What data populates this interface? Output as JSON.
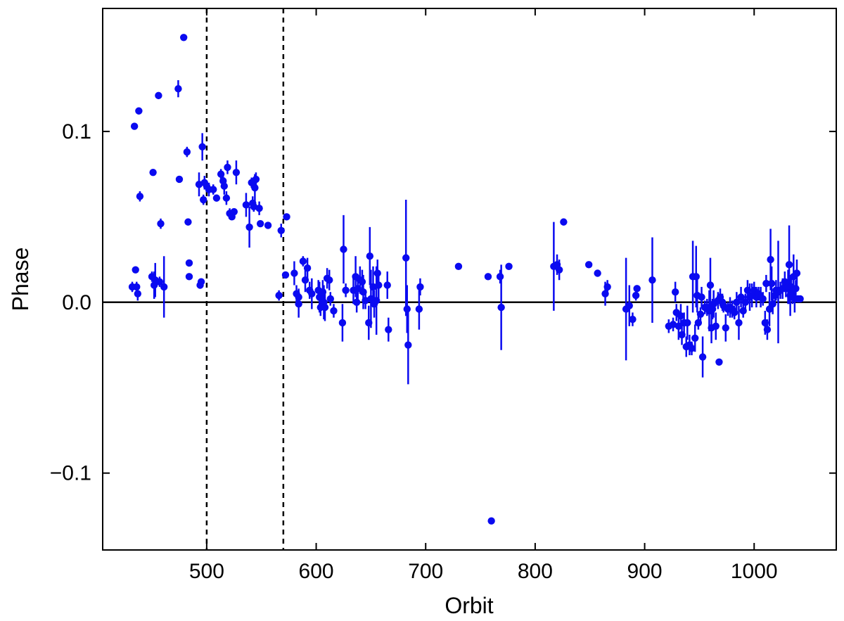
{
  "chart_data": {
    "type": "scatter",
    "title": "",
    "xlabel": "Orbit",
    "ylabel": "Phase",
    "xlim": [
      405,
      1075
    ],
    "ylim": [
      -0.145,
      0.172
    ],
    "xticks": [
      500,
      600,
      700,
      800,
      900,
      1000
    ],
    "yticks": [
      -0.1,
      0.0,
      0.1
    ],
    "ytick_labels": [
      "−0.1",
      "0.0",
      "0.1"
    ],
    "grid": false,
    "legend": "none",
    "point_color": "#0a0af0",
    "reference_lines": {
      "horizontal": [
        0.0
      ],
      "vertical_dashed": [
        500,
        570
      ]
    },
    "points": [
      [
        432,
        0.009,
        0.003
      ],
      [
        434,
        0.103,
        0.001
      ],
      [
        435,
        0.019,
        0.002
      ],
      [
        436,
        0.009,
        0.003
      ],
      [
        437,
        0.005,
        0.004
      ],
      [
        438,
        0.112,
        0.001
      ],
      [
        439,
        0.062,
        0.003
      ],
      [
        450,
        0.015,
        0.003
      ],
      [
        451,
        0.076,
        0.001
      ],
      [
        452,
        0.01,
        0.008
      ],
      [
        453,
        0.013,
        0.01
      ],
      [
        456,
        0.121,
        0.002
      ],
      [
        457,
        0.012,
        0.003
      ],
      [
        458,
        0.046,
        0.003
      ],
      [
        461,
        0.009,
        0.018
      ],
      [
        474,
        0.125,
        0.005
      ],
      [
        475,
        0.072,
        0.001
      ],
      [
        479,
        0.155,
        0.001
      ],
      [
        482,
        0.088,
        0.003
      ],
      [
        483,
        0.047,
        0.001
      ],
      [
        484,
        0.023,
        0.001
      ],
      [
        484,
        0.015,
        0.001
      ],
      [
        493,
        0.069,
        0.007
      ],
      [
        494,
        0.01,
        0.002
      ],
      [
        495,
        0.012,
        0.002
      ],
      [
        496,
        0.091,
        0.008
      ],
      [
        497,
        0.06,
        0.003
      ],
      [
        498,
        0.07,
        0.004
      ],
      [
        500,
        0.068,
        0.003
      ],
      [
        502,
        0.066,
        0.004
      ],
      [
        506,
        0.066,
        0.003
      ],
      [
        509,
        0.061,
        0.002
      ],
      [
        513,
        0.075,
        0.003
      ],
      [
        515,
        0.071,
        0.004
      ],
      [
        516,
        0.068,
        0.005
      ],
      [
        518,
        0.061,
        0.004
      ],
      [
        519,
        0.079,
        0.004
      ],
      [
        521,
        0.052,
        0.003
      ],
      [
        523,
        0.05,
        0.001
      ],
      [
        525,
        0.053,
        0.002
      ],
      [
        527,
        0.076,
        0.007
      ],
      [
        536,
        0.057,
        0.007
      ],
      [
        539,
        0.044,
        0.012
      ],
      [
        541,
        0.07,
        0.003
      ],
      [
        542,
        0.058,
        0.004
      ],
      [
        543,
        0.056,
        0.003
      ],
      [
        544,
        0.067,
        0.008
      ],
      [
        545,
        0.072,
        0.004
      ],
      [
        548,
        0.055,
        0.004
      ],
      [
        549,
        0.046,
        0.001
      ],
      [
        556,
        0.045,
        0.001
      ],
      [
        566,
        0.004,
        0.003
      ],
      [
        568,
        0.042,
        0.004
      ],
      [
        572,
        0.016,
        0.001
      ],
      [
        573,
        0.05,
        0.002
      ],
      [
        580,
        0.017,
        0.007
      ],
      [
        582,
        0.005,
        0.005
      ],
      [
        584,
        -0.001,
        0.008
      ],
      [
        584,
        0.003,
        0.005
      ],
      [
        588,
        0.024,
        0.003
      ],
      [
        590,
        0.013,
        0.007
      ],
      [
        592,
        0.02,
        0.006
      ],
      [
        594,
        0.007,
        0.005
      ],
      [
        596,
        0.005,
        0.009
      ],
      [
        602,
        0.007,
        0.006
      ],
      [
        603,
        0.003,
        0.009
      ],
      [
        604,
        -0.003,
        0.005
      ],
      [
        606,
        0.006,
        0.007
      ],
      [
        607,
        0.0,
        0.01
      ],
      [
        608,
        -0.003,
        0.008
      ],
      [
        610,
        0.014,
        0.006
      ],
      [
        612,
        0.013,
        0.006
      ],
      [
        613,
        0.002,
        0.004
      ],
      [
        616,
        -0.005,
        0.004
      ],
      [
        624,
        -0.012,
        0.011
      ],
      [
        625,
        0.031,
        0.02
      ],
      [
        627,
        0.007,
        0.004
      ],
      [
        634,
        0.007,
        0.008
      ],
      [
        636,
        0.015,
        0.012
      ],
      [
        637,
        0.0,
        0.006
      ],
      [
        638,
        0.008,
        0.007
      ],
      [
        640,
        0.013,
        0.008
      ],
      [
        642,
        0.012,
        0.007
      ],
      [
        643,
        0.006,
        0.01
      ],
      [
        645,
        0.001,
        0.005
      ],
      [
        648,
        -0.012,
        0.01
      ],
      [
        649,
        0.027,
        0.017
      ],
      [
        650,
        0.002,
        0.017
      ],
      [
        652,
        0.009,
        0.012
      ],
      [
        653,
        -0.001,
        0.008
      ],
      [
        655,
        0.001,
        0.02
      ],
      [
        656,
        0.017,
        0.008
      ],
      [
        657,
        0.01,
        0.008
      ],
      [
        665,
        0.01,
        0.008
      ],
      [
        666,
        -0.016,
        0.007
      ],
      [
        682,
        0.026,
        0.034
      ],
      [
        683,
        -0.004,
        0.014
      ],
      [
        684,
        -0.025,
        0.023
      ],
      [
        694,
        -0.004,
        0.012
      ],
      [
        695,
        0.009,
        0.005
      ],
      [
        730,
        0.021,
        0.001
      ],
      [
        757,
        0.015,
        0.001
      ],
      [
        760,
        -0.128,
        0.001
      ],
      [
        768,
        0.015,
        0.004
      ],
      [
        769,
        -0.003,
        0.025
      ],
      [
        776,
        0.021,
        0.002
      ],
      [
        817,
        0.021,
        0.026
      ],
      [
        820,
        0.022,
        0.006
      ],
      [
        822,
        0.019,
        0.006
      ],
      [
        826,
        0.047,
        0.001
      ],
      [
        849,
        0.022,
        0.001
      ],
      [
        857,
        0.017,
        0.001
      ],
      [
        864,
        0.005,
        0.007
      ],
      [
        866,
        0.009,
        0.004
      ],
      [
        883,
        -0.004,
        0.03
      ],
      [
        886,
        -0.002,
        0.012
      ],
      [
        889,
        -0.01,
        0.004
      ],
      [
        892,
        0.004,
        0.003
      ],
      [
        893,
        0.008,
        0.002
      ],
      [
        907,
        0.013,
        0.025
      ],
      [
        922,
        -0.014,
        0.004
      ],
      [
        926,
        -0.013,
        0.004
      ],
      [
        928,
        0.006,
        0.006
      ],
      [
        929,
        -0.006,
        0.005
      ],
      [
        931,
        -0.014,
        0.008
      ],
      [
        933,
        -0.008,
        0.007
      ],
      [
        934,
        -0.019,
        0.006
      ],
      [
        936,
        -0.012,
        0.006
      ],
      [
        938,
        -0.026,
        0.006
      ],
      [
        939,
        -0.012,
        0.01
      ],
      [
        941,
        -0.025,
        0.006
      ],
      [
        943,
        -0.027,
        0.004
      ],
      [
        944,
        0.015,
        0.021
      ],
      [
        946,
        -0.021,
        0.008
      ],
      [
        947,
        0.015,
        0.018
      ],
      [
        948,
        0.004,
        0.01
      ],
      [
        949,
        -0.012,
        0.004
      ],
      [
        951,
        -0.007,
        0.004
      ],
      [
        952,
        0.003,
        0.006
      ],
      [
        953,
        -0.032,
        0.012
      ],
      [
        955,
        -0.003,
        0.004
      ],
      [
        957,
        -0.003,
        0.005
      ],
      [
        959,
        -0.005,
        0.012
      ],
      [
        960,
        0.01,
        0.016
      ],
      [
        961,
        -0.015,
        0.009
      ],
      [
        962,
        -0.004,
        0.006
      ],
      [
        963,
        -0.001,
        0.008
      ],
      [
        965,
        -0.014,
        0.008
      ],
      [
        967,
        0.001,
        0.005
      ],
      [
        968,
        -0.035,
        0.002
      ],
      [
        969,
        0.003,
        0.005
      ],
      [
        971,
        0.0,
        0.005
      ],
      [
        972,
        -0.002,
        0.004
      ],
      [
        974,
        -0.015,
        0.008
      ],
      [
        976,
        -0.004,
        0.004
      ],
      [
        978,
        -0.003,
        0.006
      ],
      [
        980,
        -0.004,
        0.005
      ],
      [
        982,
        -0.006,
        0.004
      ],
      [
        984,
        0.0,
        0.006
      ],
      [
        986,
        -0.012,
        0.01
      ],
      [
        988,
        0.003,
        0.006
      ],
      [
        990,
        -0.005,
        0.004
      ],
      [
        992,
        0.0,
        0.005
      ],
      [
        994,
        0.007,
        0.006
      ],
      [
        996,
        0.003,
        0.008
      ],
      [
        998,
        0.004,
        0.007
      ],
      [
        1000,
        0.007,
        0.005
      ],
      [
        1002,
        0.003,
        0.006
      ],
      [
        1004,
        0.005,
        0.004
      ],
      [
        1006,
        0.003,
        0.006
      ],
      [
        1008,
        0.002,
        0.004
      ],
      [
        1010,
        -0.012,
        0.007
      ],
      [
        1011,
        0.011,
        0.005
      ],
      [
        1012,
        -0.016,
        0.006
      ],
      [
        1014,
        -0.004,
        0.01
      ],
      [
        1015,
        0.025,
        0.018
      ],
      [
        1016,
        0.011,
        0.01
      ],
      [
        1017,
        -0.001,
        0.006
      ],
      [
        1019,
        0.004,
        0.005
      ],
      [
        1020,
        0.007,
        0.006
      ],
      [
        1022,
        0.006,
        0.03
      ],
      [
        1024,
        0.007,
        0.005
      ],
      [
        1026,
        0.008,
        0.006
      ],
      [
        1028,
        0.012,
        0.006
      ],
      [
        1029,
        0.008,
        0.005
      ],
      [
        1031,
        0.009,
        0.01
      ],
      [
        1032,
        0.022,
        0.023
      ],
      [
        1033,
        0.004,
        0.012
      ],
      [
        1034,
        0.009,
        0.005
      ],
      [
        1035,
        0.003,
        0.004
      ],
      [
        1036,
        0.015,
        0.013
      ],
      [
        1037,
        0.002,
        0.008
      ],
      [
        1038,
        0.008,
        0.005
      ],
      [
        1039,
        0.017,
        0.008
      ],
      [
        1040,
        0.002,
        0.002
      ],
      [
        1042,
        0.002,
        0.001
      ]
    ]
  }
}
